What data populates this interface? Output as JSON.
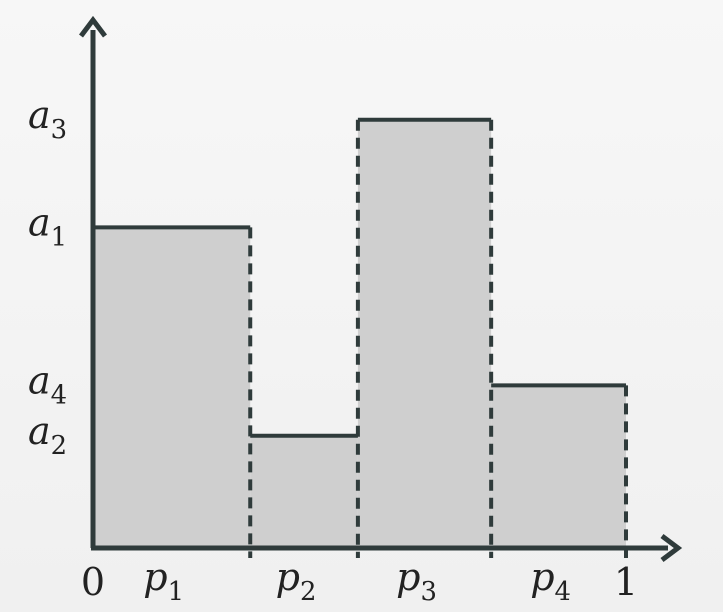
{
  "chart_data": {
    "type": "bar",
    "x_origin_label": "0",
    "x_end_label": "1",
    "bars": [
      {
        "label": "p",
        "sub": "1",
        "x_start": 0.0,
        "x_end": 0.295,
        "height": 0.7
      },
      {
        "label": "p",
        "sub": "2",
        "x_start": 0.295,
        "x_end": 0.497,
        "height": 0.245
      },
      {
        "label": "p",
        "sub": "3",
        "x_start": 0.497,
        "x_end": 0.747,
        "height": 0.935
      },
      {
        "label": "p",
        "sub": "4",
        "x_start": 0.747,
        "x_end": 1.0,
        "height": 0.355
      }
    ],
    "y_labels": [
      {
        "label": "a",
        "sub": "3",
        "value": 0.935
      },
      {
        "label": "a",
        "sub": "1",
        "value": 0.7
      },
      {
        "label": "a",
        "sub": "4",
        "value": 0.355
      },
      {
        "label": "a",
        "sub": "2",
        "value": 0.245
      }
    ],
    "xlim": [
      0,
      1
    ],
    "ylim": [
      0,
      1
    ],
    "colors": {
      "fill": "#cfcfcf",
      "stroke": "#2f3b3b",
      "axis": "#2f3b3b"
    }
  }
}
